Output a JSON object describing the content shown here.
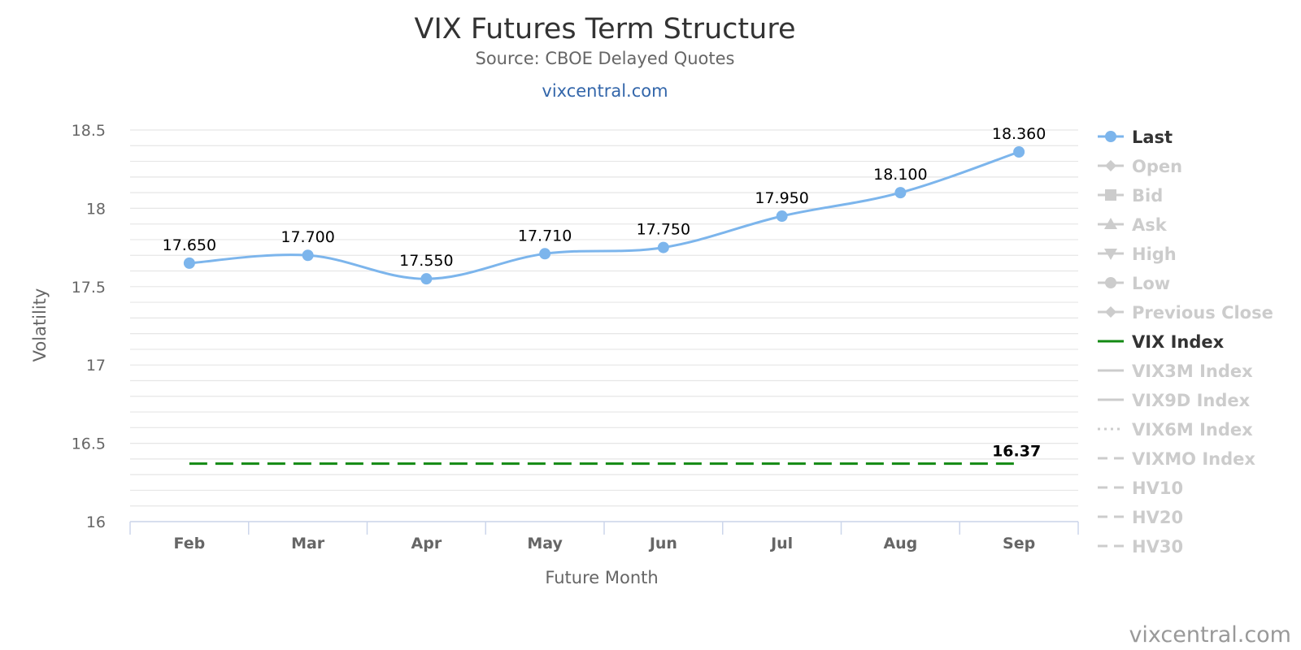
{
  "chart_data": {
    "type": "line",
    "title": "VIX Futures Term Structure",
    "subtitle": "Source: CBOE Delayed Quotes",
    "site_link": "vixcentral.com",
    "xlabel": "Future Month",
    "ylabel": "Volatility",
    "categories": [
      "Feb",
      "Mar",
      "Apr",
      "May",
      "Jun",
      "Jul",
      "Aug",
      "Sep"
    ],
    "ylim": [
      16,
      18.5
    ],
    "yticks": [
      16,
      16.5,
      17,
      17.5,
      18,
      18.5
    ],
    "ytick_labels": [
      "16",
      "16.5",
      "17",
      "17.5",
      "18",
      "18.5"
    ],
    "grid": true,
    "legend_position": "right",
    "series": [
      {
        "name": "Last",
        "values": [
          17.65,
          17.7,
          17.55,
          17.71,
          17.75,
          17.95,
          18.1,
          18.36
        ],
        "labels": [
          "17.650",
          "17.700",
          "17.550",
          "17.710",
          "17.750",
          "17.950",
          "18.100",
          "18.360"
        ],
        "color": "#7cb5ec",
        "style": "smooth-line-with-markers"
      },
      {
        "name": "VIX Index",
        "value": 16.37,
        "label": "16.37",
        "color": "#138a13",
        "style": "dashed"
      }
    ],
    "legend": [
      {
        "name": "Last",
        "symbol": "circle-line",
        "active": true,
        "color": "#7cb5ec"
      },
      {
        "name": "Open",
        "symbol": "diamond-line",
        "active": false
      },
      {
        "name": "Bid",
        "symbol": "square-line",
        "active": false
      },
      {
        "name": "Ask",
        "symbol": "triangle-line",
        "active": false
      },
      {
        "name": "High",
        "symbol": "triangle-down-line",
        "active": false
      },
      {
        "name": "Low",
        "symbol": "circle-line",
        "active": false
      },
      {
        "name": "Previous Close",
        "symbol": "diamond-line",
        "active": false
      },
      {
        "name": "VIX Index",
        "symbol": "solid-line",
        "active": true,
        "color": "#138a13"
      },
      {
        "name": "VIX3M Index",
        "symbol": "solid-line",
        "active": false
      },
      {
        "name": "VIX9D Index",
        "symbol": "solid-line",
        "active": false
      },
      {
        "name": "VIX6M Index",
        "symbol": "dotted-line",
        "active": false
      },
      {
        "name": "VIXMO Index",
        "symbol": "dashed-line",
        "active": false
      },
      {
        "name": "HV10",
        "symbol": "dashed-line",
        "active": false
      },
      {
        "name": "HV20",
        "symbol": "dashed-line",
        "active": false
      },
      {
        "name": "HV30",
        "symbol": "dashed-line",
        "active": false
      }
    ],
    "credit": "vixcentral.com"
  },
  "colors": {
    "inactive_legend": "#cccccc",
    "active_legend_text": "#333333",
    "gridline": "#e6e6e6",
    "axis_line": "#ccd6eb"
  }
}
